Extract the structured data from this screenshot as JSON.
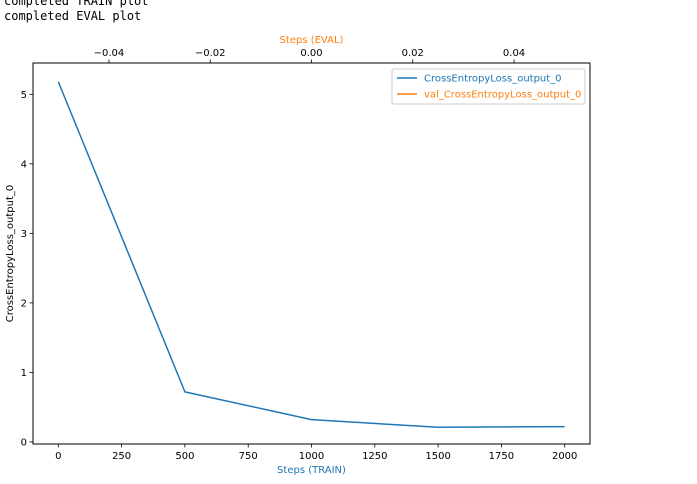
{
  "console": [
    "completed TRAIN plot",
    "completed EVAL plot"
  ],
  "chart_data": {
    "type": "line",
    "xlabel": "Steps (TRAIN)",
    "x2label": "Steps (EVAL)",
    "ylabel": "CrossEntropyLoss_output_0",
    "xlim": [
      -100,
      2100
    ],
    "x2lim": [
      -0.055,
      0.055
    ],
    "ylim": [
      -0.03,
      5.45
    ],
    "xticks": [
      0,
      250,
      500,
      750,
      1000,
      1250,
      1500,
      1750,
      2000
    ],
    "x2ticks": [
      -0.04,
      -0.02,
      0.0,
      0.02,
      0.04
    ],
    "x2ticklabels": [
      "−0.04",
      "−0.02",
      "0.00",
      "0.02",
      "0.04"
    ],
    "yticks": [
      0,
      1,
      2,
      3,
      4,
      5
    ],
    "legend_position": "top-right",
    "grid": false,
    "series": [
      {
        "name": "CrossEntropyLoss_output_0",
        "color": "#1f77b4",
        "x": [
          0,
          500,
          1000,
          1500,
          2000
        ],
        "y": [
          5.18,
          0.72,
          0.32,
          0.21,
          0.22
        ]
      },
      {
        "name": "val_CrossEntropyLoss_output_0",
        "color": "#ff7f0e",
        "x": [],
        "y": []
      }
    ],
    "colors": {
      "train_label": "#1f77b4",
      "eval_label": "#ff7f0e"
    }
  }
}
